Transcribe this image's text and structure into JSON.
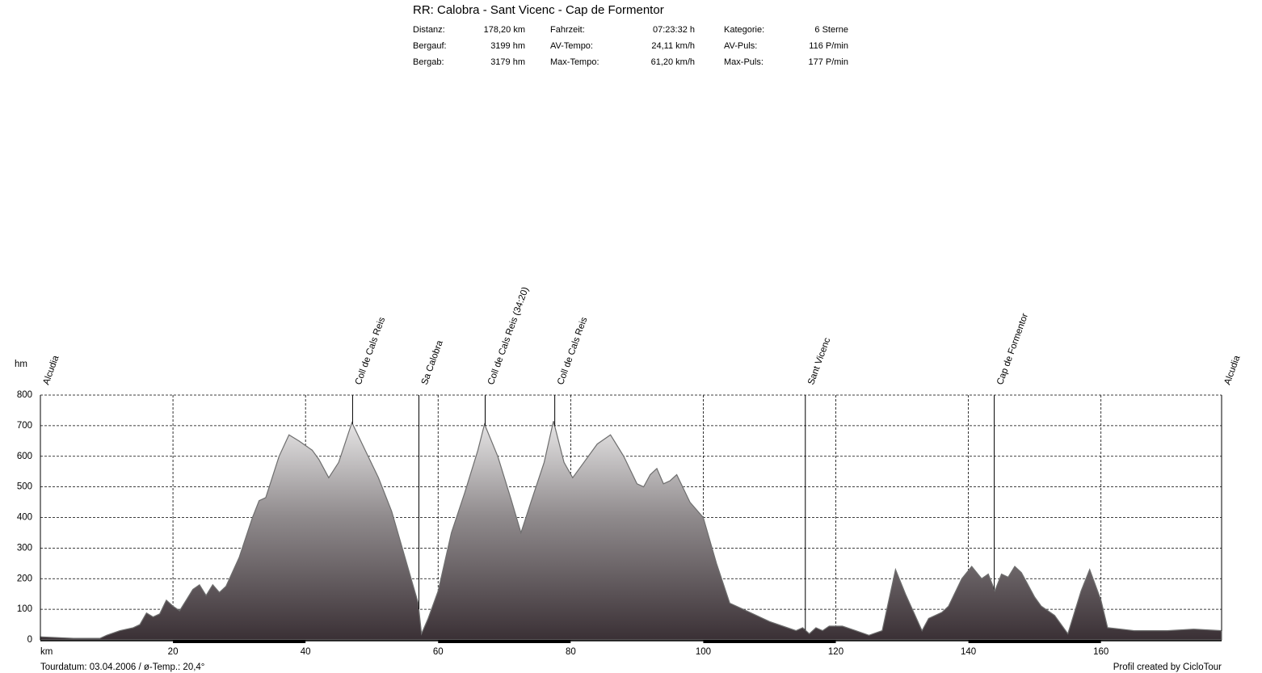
{
  "chart_data": {
    "type": "area",
    "title": "RR: Calobra - Sant Vicenc - Cap de Formentor",
    "stats": [
      [
        "Distanz:",
        "178,20 km",
        "Fahrzeit:",
        "07:23:32 h",
        "Kategorie:",
        "6 Sterne"
      ],
      [
        "Bergauf:",
        "3199 hm",
        "AV-Tempo:",
        "24,11 km/h",
        "AV-Puls:",
        "116 P/min"
      ],
      [
        "Bergab:",
        "3179 hm",
        "Max-Tempo:",
        "61,20 km/h",
        "Max-Puls:",
        "177 P/min"
      ]
    ],
    "y_label": "hm",
    "x_label": "km",
    "footer_left": "Tourdatum: 03.04.2006  /  ø-Temp.: 20,4°",
    "footer_right": "Profil created by CicloTour",
    "xlim": [
      0,
      178.2
    ],
    "xticks": [
      20,
      40,
      60,
      80,
      100,
      120,
      140,
      160
    ],
    "ylim": [
      0,
      800
    ],
    "yticks": [
      0,
      100,
      200,
      300,
      400,
      500,
      600,
      700,
      800
    ],
    "grid": true,
    "annotations": [
      {
        "label": "Alcudia",
        "x": 0
      },
      {
        "label": "Coll de Cals Reis",
        "x": 47.1
      },
      {
        "label": "Sa Calobra",
        "x": 57.1
      },
      {
        "label": "Coll de Cals Reis (34:20)",
        "x": 67.1
      },
      {
        "label": "Coll de Cals Reis",
        "x": 77.6
      },
      {
        "label": "Sant Vicenc",
        "x": 115.4
      },
      {
        "label": "Cap de Formentor",
        "x": 143.9
      },
      {
        "label": "Alcudia",
        "x": 178.2
      }
    ],
    "x": [
      0,
      5,
      9,
      10,
      12,
      14,
      15,
      16,
      17,
      18,
      19,
      20,
      21,
      22,
      23,
      24,
      25,
      26,
      27,
      28,
      30,
      32,
      33,
      34,
      36,
      37.5,
      39,
      41,
      42,
      43.5,
      45,
      47,
      49,
      51,
      53,
      55,
      57,
      57.5,
      58.5,
      60,
      62,
      64,
      66,
      67,
      69,
      71,
      72.5,
      74,
      76,
      77.4,
      79,
      80.3,
      82,
      84,
      86,
      88,
      90,
      91,
      92,
      93,
      94,
      95,
      96,
      98,
      100,
      102,
      104,
      106,
      108,
      110,
      112,
      114,
      115,
      116,
      117,
      118,
      119,
      121,
      123,
      125,
      127,
      129,
      130.5,
      133,
      134,
      136,
      137,
      139,
      140.5,
      142,
      143,
      144,
      145,
      146,
      147,
      148,
      150,
      151,
      153,
      155,
      157,
      158.3,
      160,
      161,
      163,
      165,
      170,
      174,
      178.2
    ],
    "values": [
      10,
      5,
      5,
      15,
      30,
      40,
      50,
      88,
      75,
      85,
      130,
      110,
      95,
      130,
      165,
      180,
      145,
      180,
      155,
      175,
      270,
      400,
      455,
      465,
      600,
      670,
      650,
      620,
      590,
      530,
      580,
      710,
      620,
      530,
      420,
      270,
      120,
      20,
      70,
      160,
      350,
      480,
      620,
      705,
      600,
      460,
      350,
      450,
      580,
      715,
      580,
      530,
      580,
      640,
      670,
      600,
      510,
      500,
      540,
      560,
      510,
      520,
      540,
      450,
      400,
      250,
      120,
      100,
      80,
      60,
      45,
      30,
      40,
      20,
      40,
      30,
      45,
      45,
      30,
      15,
      30,
      230,
      150,
      30,
      70,
      90,
      110,
      200,
      240,
      200,
      215,
      160,
      215,
      205,
      240,
      220,
      140,
      110,
      80,
      20,
      160,
      230,
      130,
      40,
      35,
      30,
      30,
      35,
      30
    ]
  }
}
